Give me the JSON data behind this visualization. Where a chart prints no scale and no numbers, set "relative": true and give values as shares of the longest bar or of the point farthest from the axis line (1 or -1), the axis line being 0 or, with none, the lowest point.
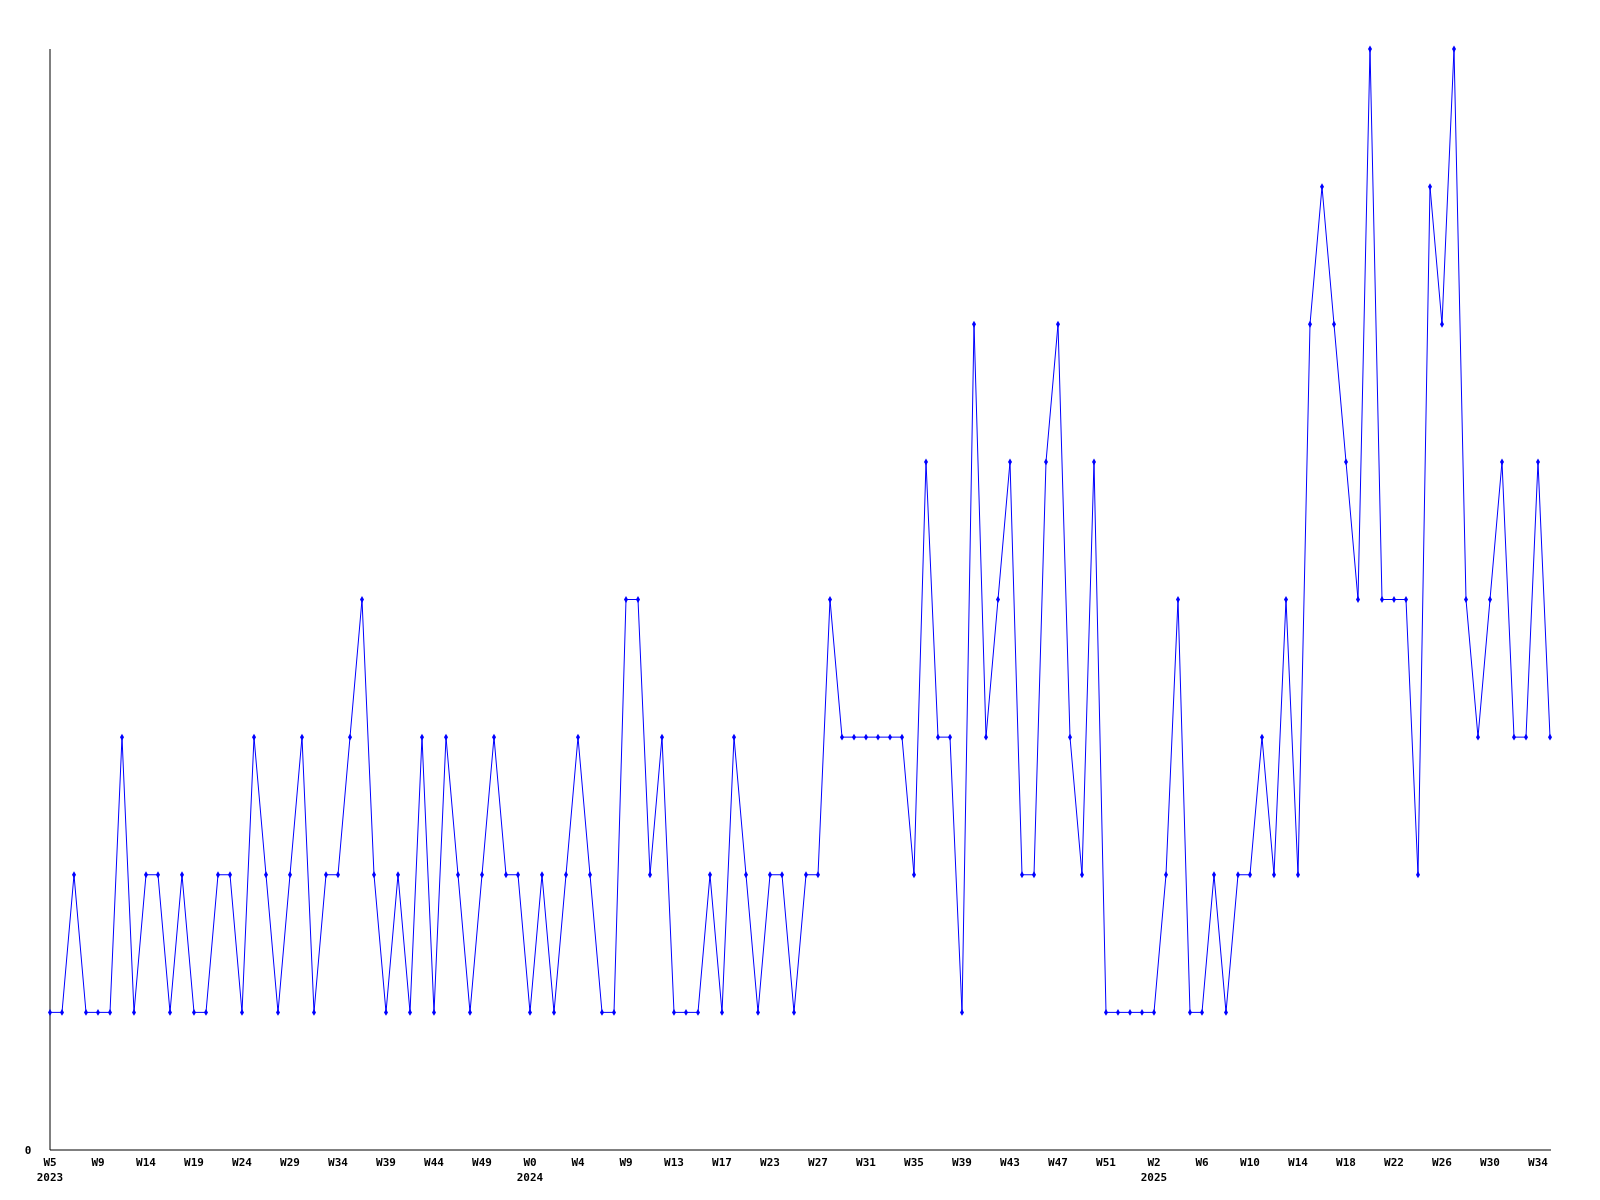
{
  "chart_data": {
    "type": "line",
    "relative": true,
    "marker": "diamond",
    "line_style": "solid",
    "annotations": [
      "0"
    ],
    "categories": [
      "W5\n2023",
      null,
      null,
      null,
      "W9",
      null,
      null,
      null,
      "W14",
      null,
      null,
      null,
      "W19",
      null,
      null,
      null,
      "W24",
      null,
      null,
      null,
      "W29",
      null,
      null,
      null,
      "W34",
      null,
      null,
      null,
      "W39",
      null,
      null,
      null,
      "W44",
      null,
      null,
      null,
      "W49",
      null,
      null,
      null,
      "W0\n2024",
      null,
      null,
      null,
      "W4",
      null,
      null,
      null,
      "W9",
      null,
      null,
      null,
      "W13",
      null,
      null,
      null,
      "W17",
      null,
      null,
      null,
      "W23",
      null,
      null,
      null,
      "W27",
      null,
      null,
      null,
      "W31",
      null,
      null,
      null,
      "W35",
      null,
      null,
      null,
      "W39",
      null,
      null,
      null,
      "W43",
      null,
      null,
      null,
      "W47",
      null,
      null,
      null,
      "W51",
      null,
      null,
      null,
      "W2\n2025",
      null,
      null,
      null,
      "W6",
      null,
      null,
      null,
      "W10",
      null,
      null,
      null,
      "W14",
      null,
      null,
      null,
      "W18",
      null,
      null,
      null,
      "W22",
      null,
      null,
      null,
      "W26",
      null,
      null,
      null,
      "W30",
      null,
      null,
      null,
      "W34",
      null
    ],
    "series": [
      {
        "color": "#0000ff",
        "values": [
          0.125,
          0.125,
          0.25,
          0.125,
          0.125,
          0.125,
          0.375,
          0.125,
          0.25,
          0.25,
          0.125,
          0.25,
          0.125,
          0.125,
          0.25,
          0.25,
          0.125,
          0.375,
          0.25,
          0.125,
          0.25,
          0.375,
          0.125,
          0.25,
          0.25,
          0.375,
          0.5,
          0.25,
          0.125,
          0.25,
          0.125,
          0.375,
          0.125,
          0.375,
          0.25,
          0.125,
          0.25,
          0.375,
          0.25,
          0.25,
          0.125,
          0.25,
          0.125,
          0.25,
          0.375,
          0.25,
          0.125,
          0.125,
          0.5,
          0.5,
          0.25,
          0.375,
          0.125,
          0.125,
          0.125,
          0.25,
          0.125,
          0.375,
          0.25,
          0.125,
          0.25,
          0.25,
          0.125,
          0.25,
          0.25,
          0.5,
          0.375,
          0.375,
          0.375,
          0.375,
          0.375,
          0.375,
          0.25,
          0.625,
          0.375,
          0.375,
          0.125,
          0.75,
          0.375,
          0.5,
          0.625,
          0.25,
          0.25,
          0.625,
          0.75,
          0.375,
          0.25,
          0.625,
          0.125,
          0.125,
          0.125,
          0.125,
          0.125,
          0.25,
          0.5,
          0.125,
          0.125,
          0.25,
          0.125,
          0.25,
          0.25,
          0.375,
          0.25,
          0.5,
          0.25,
          0.75,
          0.875,
          0.75,
          0.625,
          0.5,
          1,
          0.5,
          0.5,
          0.5,
          0.25,
          0.875,
          0.75,
          1,
          0.5,
          0.375,
          0.5,
          0.625,
          0.375,
          0.375,
          0.625,
          0.375
        ]
      }
    ]
  }
}
